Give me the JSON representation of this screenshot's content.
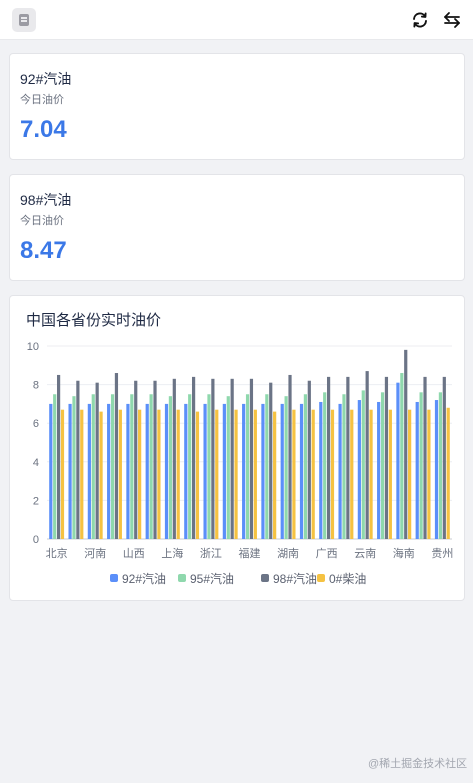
{
  "header": {
    "app_icon": "document-icon",
    "refresh_icon": "refresh-icon",
    "switch_icon": "swap-arrows-icon"
  },
  "cards": [
    {
      "title": "92#汽油",
      "subtitle": "今日油价",
      "value": "7.04"
    },
    {
      "title": "98#汽油",
      "subtitle": "今日油价",
      "value": "8.47"
    }
  ],
  "chart": {
    "title": "中国各省份实时油价"
  },
  "chart_data": {
    "type": "bar",
    "title": "中国各省份实时油价",
    "xlabel": "",
    "ylabel": "",
    "ylim": [
      0,
      10
    ],
    "yticks": [
      0,
      2,
      4,
      6,
      8,
      10
    ],
    "grid": true,
    "legend_position": "bottom",
    "categories": [
      "北京",
      "",
      "河南",
      "",
      "山西",
      "",
      "上海",
      "",
      "浙江",
      "",
      "福建",
      "",
      "湖南",
      "",
      "广西",
      "",
      "云南",
      "",
      "海南",
      "",
      "贵州"
    ],
    "category_labels": [
      "北京",
      "河南",
      "山西",
      "上海",
      "浙江",
      "福建",
      "湖南",
      "广西",
      "云南",
      "海南",
      "贵州"
    ],
    "series": [
      {
        "name": "92#汽油",
        "color": "#5b8ff9",
        "values": [
          7.0,
          7.0,
          7.0,
          7.0,
          7.0,
          7.0,
          7.0,
          7.0,
          7.0,
          7.0,
          7.0,
          7.0,
          7.0,
          7.0,
          7.1,
          7.0,
          7.2,
          7.1,
          8.1,
          7.1,
          7.2
        ]
      },
      {
        "name": "95#汽油",
        "color": "#8fd8ad",
        "values": [
          7.5,
          7.4,
          7.5,
          7.5,
          7.5,
          7.5,
          7.4,
          7.5,
          7.5,
          7.4,
          7.5,
          7.5,
          7.4,
          7.5,
          7.6,
          7.5,
          7.7,
          7.6,
          8.6,
          7.6,
          7.6
        ]
      },
      {
        "name": "98#汽油",
        "color": "#6b7486",
        "values": [
          8.5,
          8.2,
          8.1,
          8.6,
          8.2,
          8.2,
          8.3,
          8.4,
          8.3,
          8.3,
          8.3,
          8.1,
          8.5,
          8.2,
          8.4,
          8.4,
          8.7,
          8.4,
          9.8,
          8.4,
          8.4
        ]
      },
      {
        "name": "0#柴油",
        "color": "#f5c242",
        "values": [
          6.7,
          6.7,
          6.6,
          6.7,
          6.7,
          6.7,
          6.7,
          6.6,
          6.7,
          6.7,
          6.7,
          6.6,
          6.7,
          6.7,
          6.7,
          6.7,
          6.7,
          6.7,
          6.7,
          6.7,
          6.8
        ]
      }
    ]
  },
  "watermark": "@稀土掘金技术社区"
}
